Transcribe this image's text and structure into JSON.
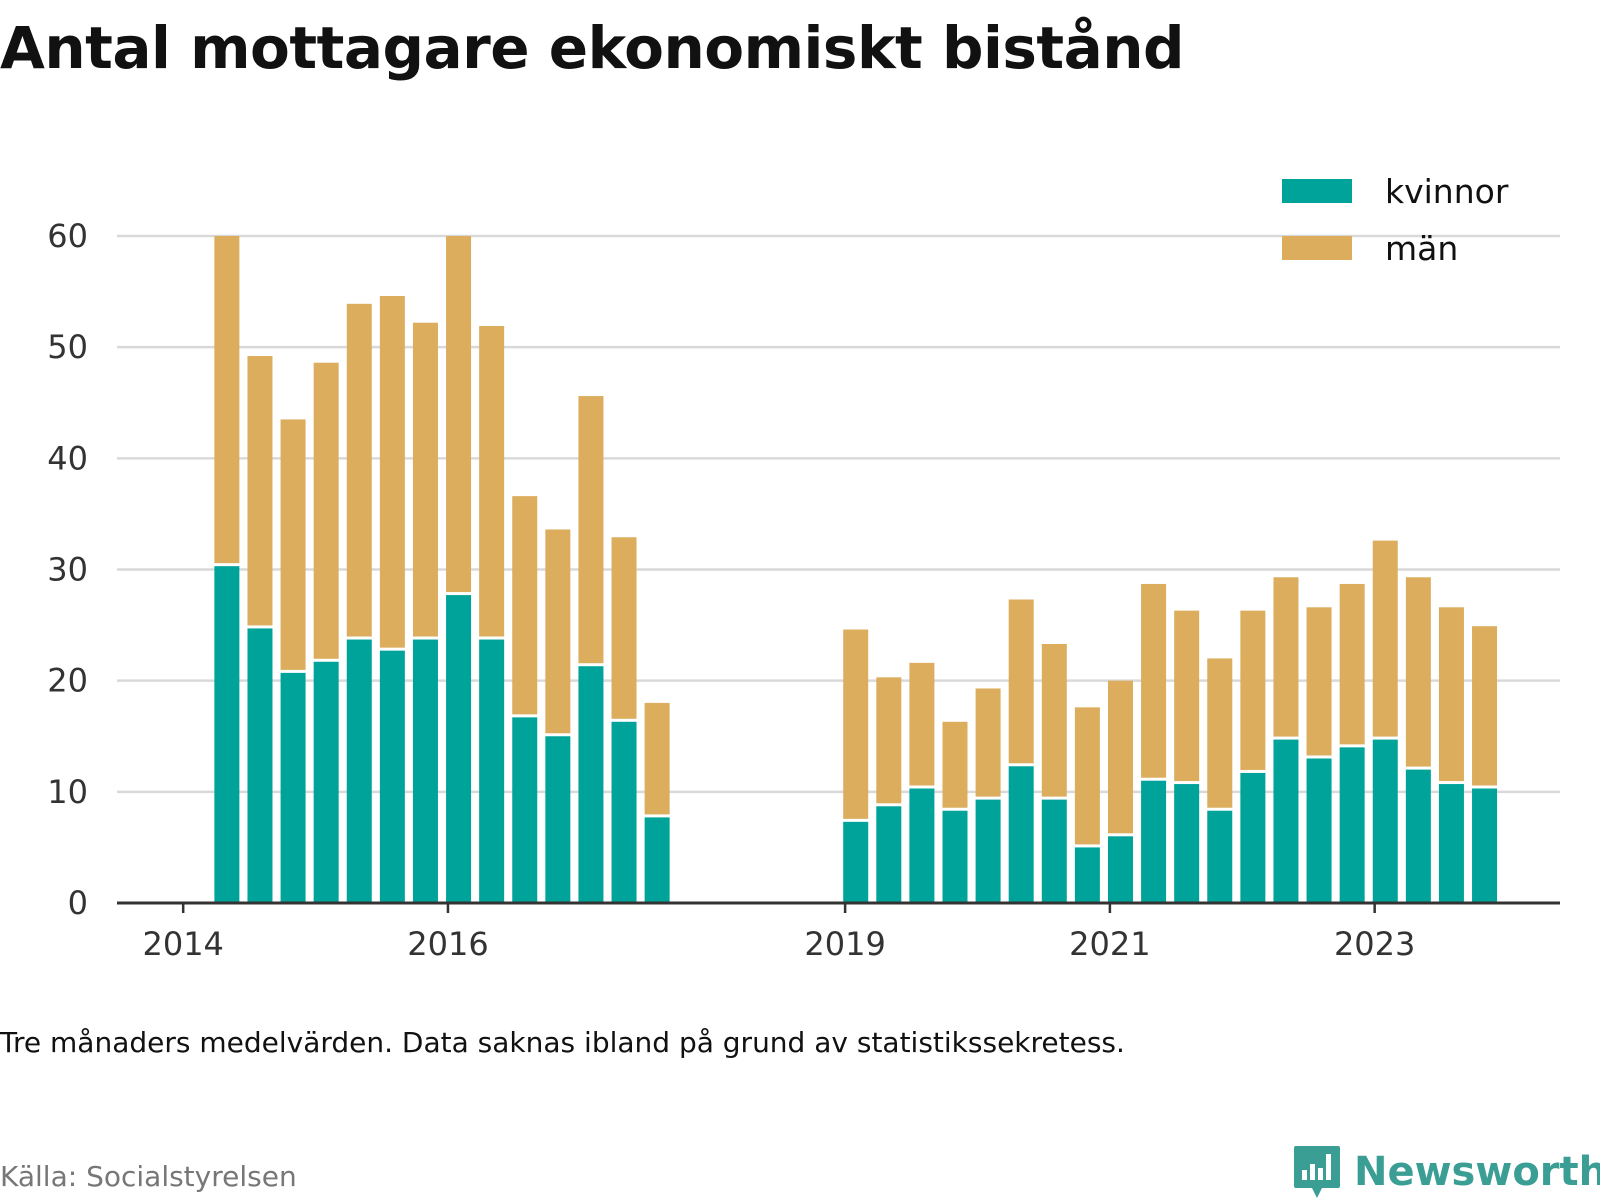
{
  "title": "Antal mottagare ekonomiskt bistånd",
  "note": "Tre månaders medelvärden. Data saknas ibland på grund av statistikssekretess.",
  "source": "Källa: Socialstyrelsen",
  "brand": {
    "name": "Newsworthy",
    "icon": "newsworthy-logo-icon"
  },
  "colors": {
    "kvinnor": "#00a399",
    "man": "#dbad5c",
    "grid": "#d9d9d9",
    "axis": "#333333",
    "tick_text": "#333333"
  },
  "chart_data": {
    "type": "bar",
    "stacked": true,
    "x_tick_labels": [
      "2014",
      "2016",
      "2019",
      "2021",
      "2023"
    ],
    "x_tick_positions": [
      2014.0,
      2016.0,
      2019.0,
      2021.0,
      2023.0
    ],
    "xlim": [
      2013.5,
      2024.4
    ],
    "ylim": [
      0,
      60
    ],
    "yticks": [
      0,
      10,
      20,
      30,
      40,
      50,
      60
    ],
    "grid": true,
    "legend_position": "top-right",
    "x": [
      2014.33,
      2014.58,
      2014.83,
      2015.08,
      2015.33,
      2015.58,
      2015.83,
      2016.08,
      2016.33,
      2016.58,
      2016.83,
      2017.08,
      2017.33,
      2017.58,
      2019.08,
      2019.33,
      2019.58,
      2019.83,
      2020.08,
      2020.33,
      2020.58,
      2020.83,
      2021.08,
      2021.33,
      2021.58,
      2021.83,
      2022.08,
      2022.33,
      2022.58,
      2022.83,
      2023.08,
      2023.33,
      2023.58,
      2023.83
    ],
    "series": [
      {
        "name": "kvinnor",
        "values": [
          30.3,
          24.7,
          20.7,
          21.7,
          23.7,
          22.7,
          23.7,
          27.7,
          23.7,
          16.7,
          15.0,
          21.3,
          16.3,
          7.7,
          7.3,
          8.7,
          10.3,
          8.3,
          9.3,
          12.3,
          9.3,
          5.0,
          6.0,
          11.0,
          10.7,
          8.3,
          11.7,
          14.7,
          13.0,
          14.0,
          14.7,
          12.0,
          10.7,
          10.3
        ]
      },
      {
        "name": "män",
        "values": [
          29.7,
          24.5,
          22.8,
          26.9,
          30.2,
          31.9,
          28.5,
          32.3,
          28.2,
          19.9,
          18.6,
          24.3,
          16.6,
          10.3,
          17.3,
          11.6,
          11.3,
          8.0,
          10.0,
          15.0,
          14.0,
          12.6,
          14.0,
          17.7,
          15.6,
          13.7,
          14.6,
          14.6,
          13.6,
          14.7,
          17.9,
          17.3,
          15.9,
          14.6
        ]
      }
    ]
  }
}
